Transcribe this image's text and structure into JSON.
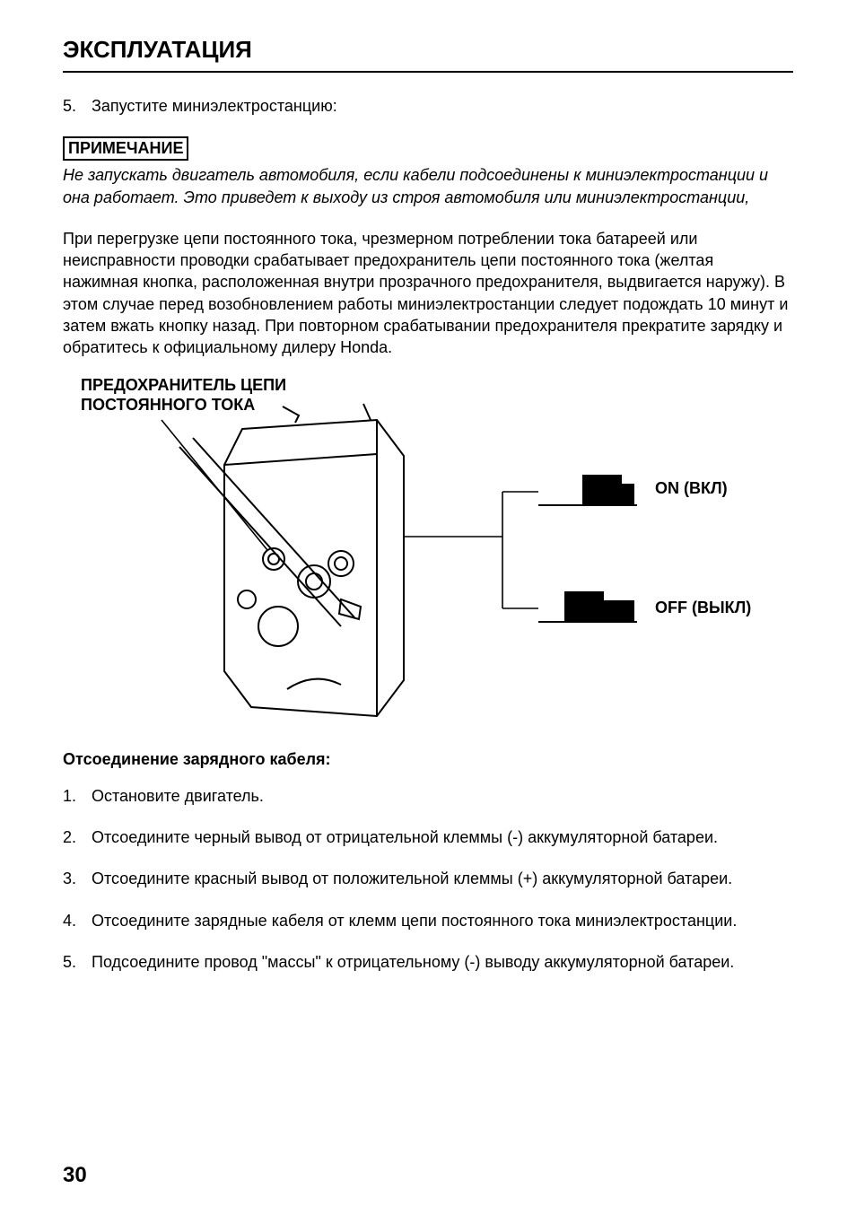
{
  "section_title": "ЭКСПЛУАТАЦИЯ",
  "top_list": {
    "num": "5.",
    "text": "Запустите миниэлектростанцию:"
  },
  "notice": {
    "label": "ПРИМЕЧАНИЕ",
    "text": "Не запускать двигатель автомобиля, если кабели подсоединены к миниэлектростанции и она работает. Это приведет к выходу из строя автомобиля или миниэлектростанции,"
  },
  "paragraph": "При перегрузке цепи постоянного тока, чрезмерном потреблении тока батареей или неисправности проводки срабатывает предохранитель цепи постоянного тока (желтая нажимная кнопка, расположенная внутри прозрачного предохранителя, выдвигается наружу). В этом случае перед возобновлением работы миниэлектростанции следует подождать 10 минут и затем вжать кнопку назад. При повторном срабатывании предохранителя прекратите зарядку и обратитесь к официальному дилеру Honda.",
  "diagram": {
    "callout": "ПРЕДОХРАНИТЕЛЬ ЦЕПИ\nПОСТОЯННОГО ТОКА",
    "on_label": "ON (ВКЛ)",
    "off_label": "OFF (ВЫКЛ)",
    "line_color": "#000000",
    "leader_stroke_width": 1.6,
    "panel_stroke_width": 2
  },
  "subheading": "Отсоединение зарядного кабеля:",
  "steps": [
    {
      "num": "1.",
      "text": "Остановите двигатель."
    },
    {
      "num": "2.",
      "text": "Отсоедините черный вывод от отрицательной клеммы (-) аккумуляторной батареи."
    },
    {
      "num": "3.",
      "text": "Отсоедините красный вывод от положительной клеммы (+) аккумуляторной батареи."
    },
    {
      "num": "4.",
      "text": "Отсоедините зарядные кабеля от клемм цепи постоянного тока миниэлектростанции."
    },
    {
      "num": "5.",
      "text": "Подсоедините провод \"массы\" к отрицательному (-) выводу аккумуляторной батареи."
    }
  ],
  "page_number": "30",
  "colors": {
    "text": "#000000",
    "bg": "#ffffff"
  }
}
